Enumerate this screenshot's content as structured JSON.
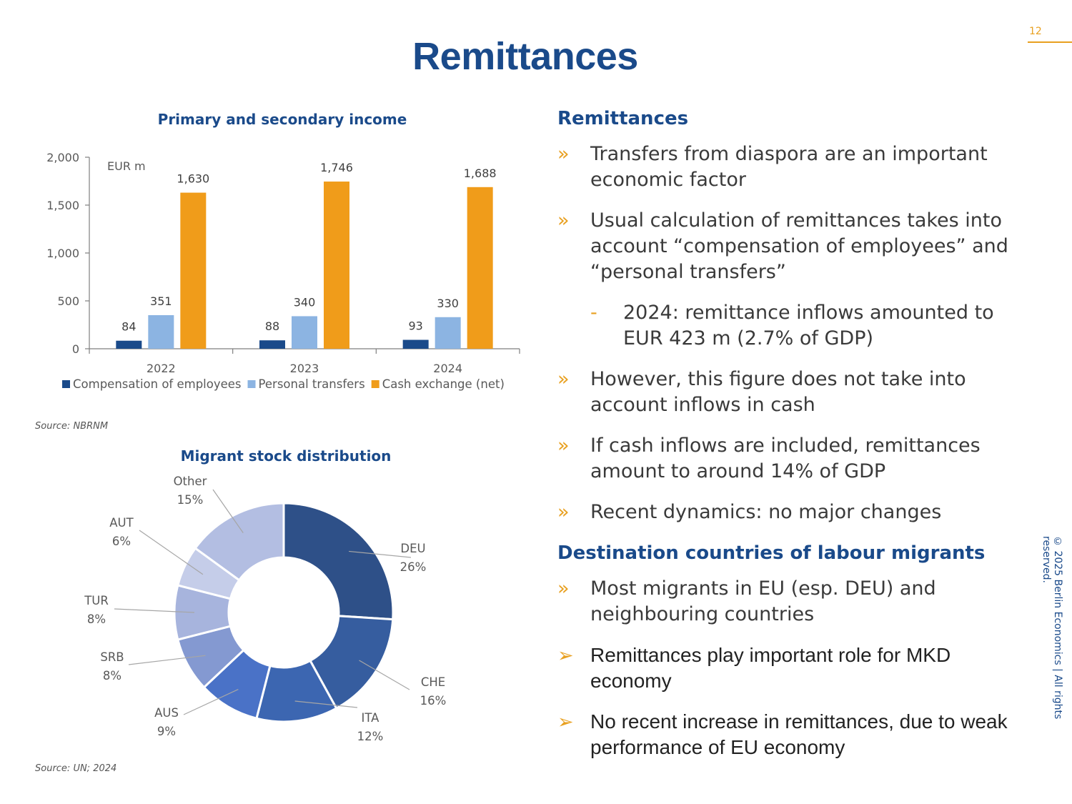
{
  "page": {
    "number": "12",
    "title": "Remittances",
    "copyright": "© 2025 Berlin Economics | All rights reserved."
  },
  "chart_data": [
    {
      "type": "bar",
      "title": "Primary and secondary income",
      "unit_label": "EUR m",
      "categories": [
        "2022",
        "2023",
        "2024"
      ],
      "series": [
        {
          "name": "Compensation of employees",
          "color": "#1a4a8a",
          "values": [
            84,
            88,
            93
          ],
          "labels": [
            "84",
            "88",
            "93"
          ]
        },
        {
          "name": "Personal transfers",
          "color": "#8cb4e2",
          "values": [
            351,
            340,
            330
          ],
          "labels": [
            "351",
            "340",
            "330"
          ]
        },
        {
          "name": "Cash exchange (net)",
          "color": "#f09c1a",
          "values": [
            1630,
            1746,
            1688
          ],
          "labels": [
            "1,630",
            "1,746",
            "1,688"
          ]
        }
      ],
      "ylim": [
        0,
        2000
      ],
      "yticks": [
        0,
        500,
        1000,
        1500,
        2000
      ],
      "ytick_labels": [
        "0",
        "500",
        "1,000",
        "1,500",
        "2,000"
      ],
      "legend": "bottom",
      "source": "Source: NBRNM"
    },
    {
      "type": "pie",
      "title": "Migrant stock distribution",
      "donut": true,
      "slices": [
        {
          "label": "DEU",
          "value": 26,
          "pct": "26%",
          "color": "#2e5088"
        },
        {
          "label": "CHE",
          "value": 16,
          "pct": "16%",
          "color": "#365d9f"
        },
        {
          "label": "ITA",
          "value": 12,
          "pct": "12%",
          "color": "#3c66b1"
        },
        {
          "label": "AUS",
          "value": 9,
          "pct": "9%",
          "color": "#4a72c7"
        },
        {
          "label": "SRB",
          "value": 8,
          "pct": "8%",
          "color": "#8499d1"
        },
        {
          "label": "TUR",
          "value": 8,
          "pct": "8%",
          "color": "#a7b4dd"
        },
        {
          "label": "AUT",
          "value": 6,
          "pct": "6%",
          "color": "#c5cde9"
        },
        {
          "label": "Other",
          "value": 15,
          "pct": "15%",
          "color": "#b3bee2"
        }
      ],
      "source": "Source: UN; 2024"
    }
  ],
  "right": {
    "heading1": "Remittances",
    "bullets1": [
      {
        "marker": "»",
        "text": "Transfers from diaspora are an important economic factor"
      },
      {
        "marker": "»",
        "text": "Usual calculation of remittances takes into account “compensation of employees” and “personal transfers”"
      },
      {
        "marker": "-",
        "text": "2024: remittance inflows amounted to EUR 423 m (2.7% of GDP)",
        "sub": true
      },
      {
        "marker": "»",
        "text": "However, this figure does not take into account inflows in cash"
      },
      {
        "marker": "»",
        "text": "If cash inflows are included, remittances amount to around 14% of GDP"
      },
      {
        "marker": "»",
        "text": "Recent dynamics: no major changes"
      }
    ],
    "heading2": "Destination countries of labour migrants",
    "bullets2": [
      {
        "marker": "»",
        "text": "Most migrants in EU (esp. DEU) and neighbouring countries"
      },
      {
        "marker": "➢",
        "text": "Remittances play important role for MKD economy",
        "strong": true
      },
      {
        "marker": "➢",
        "text": "No recent increase in remittances, due to weak performance of EU economy",
        "strong": true
      }
    ]
  }
}
